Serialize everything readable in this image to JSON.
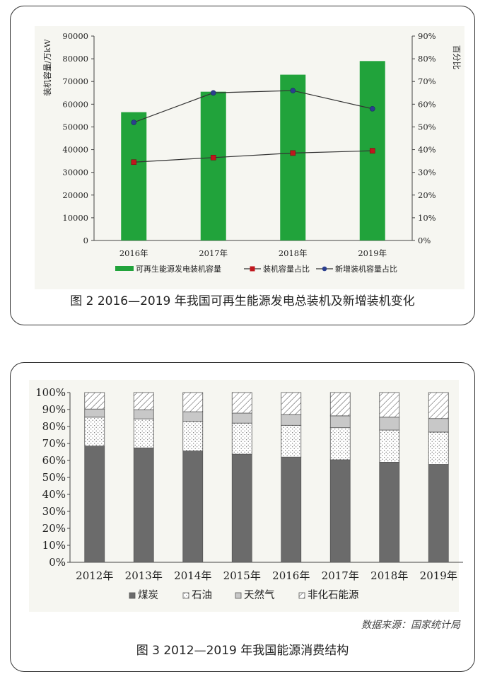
{
  "chart_data": [
    {
      "type": "bar",
      "title": "",
      "categories": [
        "2016年",
        "2017年",
        "2018年",
        "2019年"
      ],
      "ylabel": "装机容量/万kW",
      "ylabel_right": "百分比",
      "ylim": [
        0,
        90000
      ],
      "yticks": [
        "0",
        "10000",
        "20000",
        "30000",
        "40000",
        "50000",
        "60000",
        "70000",
        "80000",
        "90000"
      ],
      "ylim_right": [
        0,
        90
      ],
      "yticks_right": [
        "0%",
        "10%",
        "20%",
        "30%",
        "40%",
        "50%",
        "60%",
        "70%",
        "80%",
        "90%"
      ],
      "grid": false,
      "legend_position": "bottom",
      "series": [
        {
          "name": "可再生能源发电装机容量",
          "kind": "bar",
          "color": "#21a33b",
          "values": [
            56500,
            65500,
            73000,
            79000
          ]
        },
        {
          "name": "装机容量占比",
          "kind": "line",
          "marker": "square",
          "color": "#c0171d",
          "line_color": "#333333",
          "values": [
            34.5,
            36.5,
            38.5,
            39.5
          ]
        },
        {
          "name": "新增装机容量占比",
          "kind": "line",
          "marker": "circle",
          "color": "#2b3f8f",
          "line_color": "#333333",
          "values": [
            52,
            65,
            66,
            58
          ]
        }
      ]
    },
    {
      "type": "bar",
      "stacked": true,
      "title": "",
      "categories": [
        "2012年",
        "2013年",
        "2014年",
        "2015年",
        "2016年",
        "2017年",
        "2018年",
        "2019年"
      ],
      "ylim": [
        0,
        100
      ],
      "yticks": [
        "0%",
        "10%",
        "20%",
        "30%",
        "40%",
        "50%",
        "60%",
        "70%",
        "80%",
        "90%",
        "100%"
      ],
      "grid": false,
      "legend_position": "bottom",
      "series": [
        {
          "name": "煤炭",
          "pattern": "solid",
          "color": "#6b6b6b",
          "values": [
            68.5,
            67.4,
            65.6,
            63.7,
            62.0,
            60.4,
            59.0,
            57.7
          ]
        },
        {
          "name": "石油",
          "pattern": "dots",
          "color": "#ffffff",
          "values": [
            17.0,
            17.1,
            17.4,
            18.3,
            18.7,
            18.9,
            18.9,
            19.0
          ]
        },
        {
          "name": "天然气",
          "pattern": "light",
          "color": "#c8c8c8",
          "values": [
            4.8,
            5.3,
            5.7,
            5.9,
            6.3,
            7.0,
            7.6,
            8.0
          ]
        },
        {
          "name": "非化石能源",
          "pattern": "hatch",
          "color": "#ffffff",
          "values": [
            9.7,
            10.2,
            11.3,
            12.1,
            13.0,
            13.7,
            14.5,
            15.3
          ]
        }
      ]
    }
  ],
  "captions": {
    "fig2": "图 2  2016—2019 年我国可再生能源发电总装机及新增装机变化",
    "fig3": "图 3  2012—2019 年我国能源消费结构",
    "source": "数据来源：国家统计局"
  }
}
